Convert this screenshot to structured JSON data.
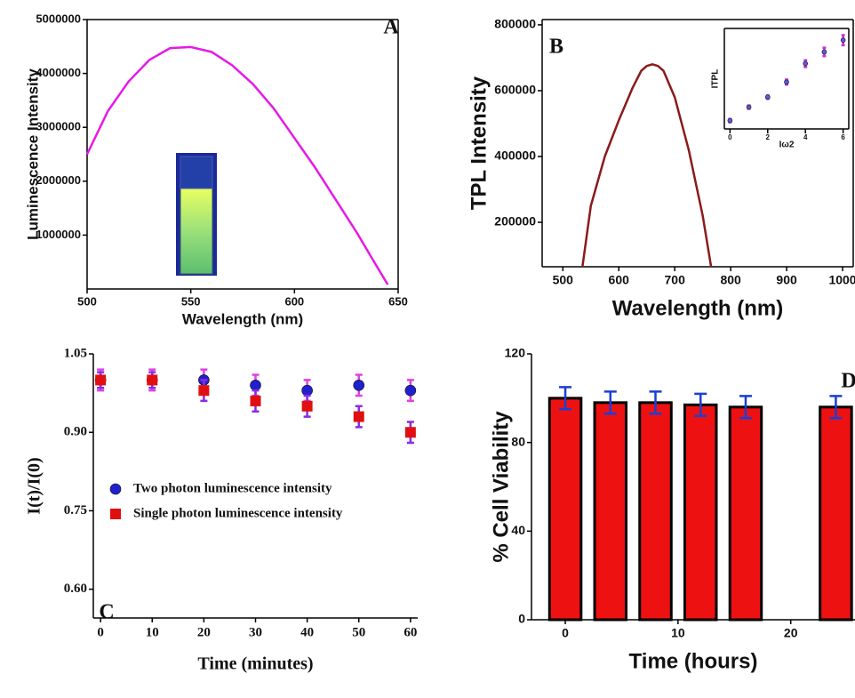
{
  "chart_data": [
    {
      "type": "line",
      "annotation": "A",
      "xlabel": "Wavelength (nm)",
      "ylabel": "Luminescence Intensity",
      "x": [
        500,
        510,
        520,
        530,
        540,
        550,
        560,
        570,
        580,
        590,
        600,
        610,
        620,
        630,
        640,
        645
      ],
      "series": [
        {
          "color": "#e619e6",
          "values": [
            2500000,
            3300000,
            3850000,
            4250000,
            4470000,
            4490000,
            4400000,
            4150000,
            3800000,
            3350000,
            2800000,
            2250000,
            1650000,
            1050000,
            400000,
            80000
          ]
        }
      ],
      "xlim": [
        500,
        650
      ],
      "ylim": [
        0,
        5000000
      ],
      "xticks": [
        500,
        550,
        600,
        650
      ],
      "yticks": [
        1000000,
        2000000,
        3000000,
        4000000,
        5000000
      ]
    },
    {
      "type": "line",
      "annotation": "B",
      "xlabel": "Wavelength (nm)",
      "ylabel": "TPL Intensity",
      "x": [
        535,
        550,
        575,
        600,
        625,
        640,
        650,
        660,
        670,
        680,
        700,
        725,
        750,
        765
      ],
      "series": [
        {
          "color": "#8b1a1a",
          "values": [
            65000,
            250000,
            400000,
            510000,
            610000,
            660000,
            675000,
            680000,
            675000,
            660000,
            580000,
            420000,
            220000,
            65000
          ]
        }
      ],
      "xlim": [
        463,
        1019
      ],
      "ylim": [
        65000,
        816000
      ],
      "xticks": [
        500,
        600,
        700,
        800,
        900,
        1000
      ],
      "yticks": [
        200000,
        400000,
        600000,
        800000
      ],
      "inset": {
        "type": "scatter",
        "xlabel": "Iω2",
        "ylabel": "ITPL",
        "x": [
          0,
          1,
          2,
          3,
          4,
          5,
          6
        ],
        "series": [
          {
            "color": "#5a5ae0",
            "error_color": "#cc33cc",
            "marker": "circle",
            "values": [
              0,
              8,
              14,
              23,
              34,
              41,
              48
            ],
            "errors": [
              1,
              1,
              1,
              1.5,
              2,
              2.5,
              3
            ]
          }
        ],
        "xlim": [
          -0.3,
          6.3
        ],
        "ylim": [
          -5,
          55
        ],
        "xticks": [
          0,
          2,
          4,
          6
        ]
      }
    },
    {
      "type": "scatter",
      "annotation": "C",
      "xlabel": "Time (minutes)",
      "ylabel": "I(t)/I(0)",
      "x": [
        0,
        10,
        20,
        30,
        40,
        50,
        60
      ],
      "series": [
        {
          "name": "Two photon luminescence intensity",
          "color": "#2020cc",
          "error_color": "#e040e0",
          "marker": "circle",
          "values": [
            1.0,
            1.0,
            1.0,
            0.99,
            0.98,
            0.99,
            0.98
          ],
          "errors": [
            0.02,
            0.02,
            0.02,
            0.02,
            0.02,
            0.02,
            0.02
          ]
        },
        {
          "name": "Single photon luminescence intensity",
          "color": "#e01010",
          "error_color": "#8a2be2",
          "marker": "square",
          "values": [
            1.0,
            1.0,
            0.98,
            0.96,
            0.95,
            0.93,
            0.9
          ],
          "errors": [
            0.015,
            0.015,
            0.02,
            0.02,
            0.02,
            0.02,
            0.02
          ]
        }
      ],
      "xlim": [
        -1.4,
        61.4
      ],
      "ylim": [
        0.545,
        1.05
      ],
      "xticks": [
        0,
        10,
        20,
        30,
        40,
        50,
        60
      ],
      "yticks": [
        {
          "value": 0.6,
          "label": "0.60"
        },
        {
          "value": 0.75,
          "label": "0.75"
        },
        {
          "value": 0.9,
          "label": "0.90"
        },
        {
          "value": 1.05,
          "label": "1.05"
        }
      ]
    },
    {
      "type": "bar",
      "annotation": "D",
      "xlabel": "Time (hours)",
      "ylabel": "% Cell Viability",
      "x": [
        0,
        4,
        8,
        12,
        16,
        24
      ],
      "series": [
        {
          "color": "#ee1111",
          "error_color": "#1a3fd6",
          "values": [
            100,
            98,
            98,
            97,
            96,
            96
          ],
          "errors": [
            5,
            5,
            5,
            5,
            5,
            5
          ]
        }
      ],
      "xlim": [
        -3,
        25.7
      ],
      "ylim": [
        0,
        120
      ],
      "xticks": [
        0,
        10,
        20
      ],
      "yticks": [
        0,
        40,
        80,
        120
      ]
    }
  ]
}
